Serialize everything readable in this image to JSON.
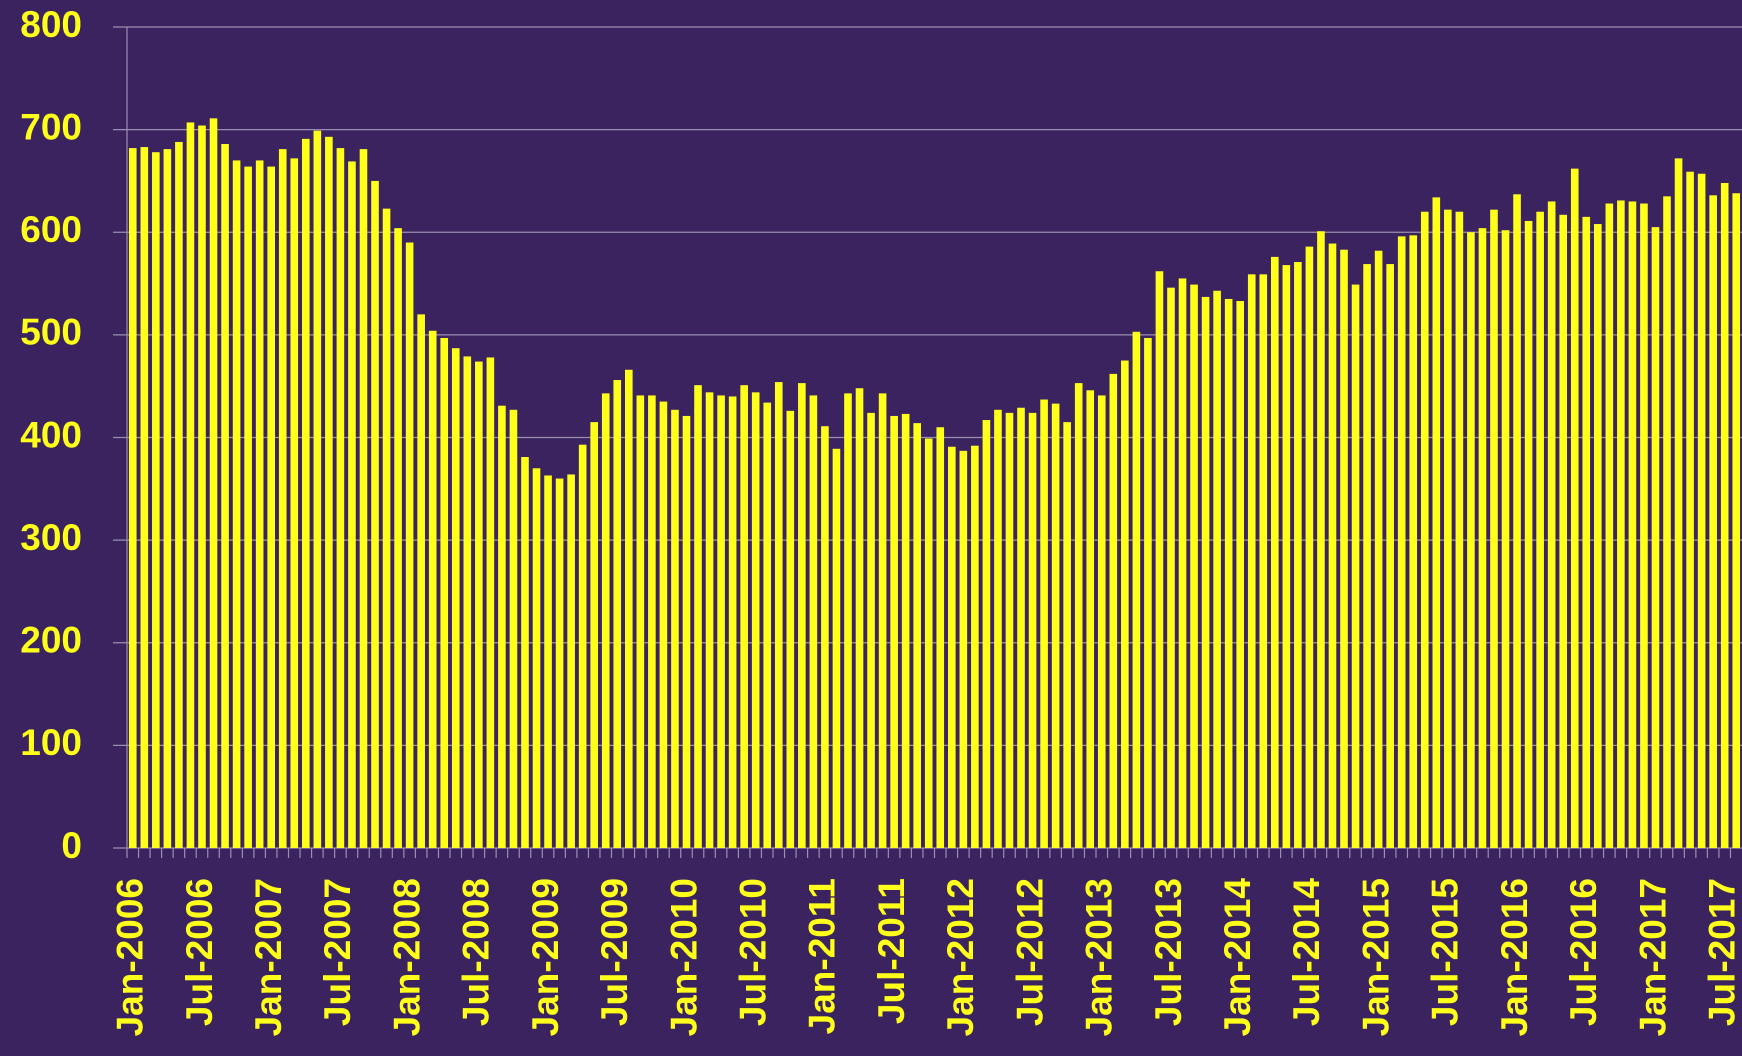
{
  "chart_data": {
    "type": "bar",
    "categories": [
      "Jan-2006",
      null,
      null,
      null,
      null,
      null,
      "Jul-2006",
      null,
      null,
      null,
      null,
      null,
      "Jan-2007",
      null,
      null,
      null,
      null,
      null,
      "Jul-2007",
      null,
      null,
      null,
      null,
      null,
      "Jan-2008",
      null,
      null,
      null,
      null,
      null,
      "Jul-2008",
      null,
      null,
      null,
      null,
      null,
      "Jan-2009",
      null,
      null,
      null,
      null,
      null,
      "Jul-2009",
      null,
      null,
      null,
      null,
      null,
      "Jan-2010",
      null,
      null,
      null,
      null,
      null,
      "Jul-2010",
      null,
      null,
      null,
      null,
      null,
      "Jan-2011",
      null,
      null,
      null,
      null,
      null,
      "Jul-2011",
      null,
      null,
      null,
      null,
      null,
      "Jan-2012",
      null,
      null,
      null,
      null,
      null,
      "Jul-2012",
      null,
      null,
      null,
      null,
      null,
      "Jan-2013",
      null,
      null,
      null,
      null,
      null,
      "Jul-2013",
      null,
      null,
      null,
      null,
      null,
      "Jan-2014",
      null,
      null,
      null,
      null,
      null,
      "Jul-2014",
      null,
      null,
      null,
      null,
      null,
      "Jan-2015",
      null,
      null,
      null,
      null,
      null,
      "Jul-2015",
      null,
      null,
      null,
      null,
      null,
      "Jan-2016",
      null,
      null,
      null,
      null,
      null,
      "Jul-2016",
      null,
      null,
      null,
      null,
      null,
      "Jan-2017",
      null,
      null,
      null,
      null,
      null,
      "Jul-2017",
      null
    ],
    "values": [
      682,
      683,
      678,
      681,
      688,
      707,
      704,
      711,
      686,
      670,
      664,
      670,
      664,
      681,
      672,
      691,
      699,
      693,
      682,
      669,
      681,
      650,
      623,
      604,
      590,
      520,
      504,
      497,
      487,
      479,
      474,
      478,
      431,
      427,
      381,
      370,
      363,
      360,
      364,
      393,
      415,
      443,
      456,
      466,
      441,
      441,
      435,
      427,
      421,
      451,
      444,
      441,
      440,
      451,
      444,
      434,
      454,
      426,
      453,
      441,
      411,
      389,
      443,
      448,
      424,
      443,
      421,
      423,
      414,
      399,
      410,
      391,
      387,
      392,
      417,
      427,
      424,
      429,
      424,
      437,
      433,
      415,
      453,
      446,
      441,
      462,
      475,
      503,
      497,
      562,
      546,
      555,
      549,
      537,
      543,
      535,
      533,
      559,
      559,
      576,
      568,
      571,
      586,
      601,
      589,
      583,
      549,
      569,
      582,
      569,
      596,
      597,
      620,
      634,
      622,
      620,
      600,
      604,
      622,
      602,
      637,
      611,
      620,
      630,
      617,
      662,
      615,
      608,
      628,
      631,
      630,
      628,
      605,
      635,
      672,
      659,
      657,
      636,
      648,
      638
    ],
    "color": "#ffff1a",
    "ylim": [
      0,
      800
    ],
    "yticks": [
      0,
      100,
      200,
      300,
      400,
      500,
      600,
      700,
      800
    ],
    "grid": true
  }
}
